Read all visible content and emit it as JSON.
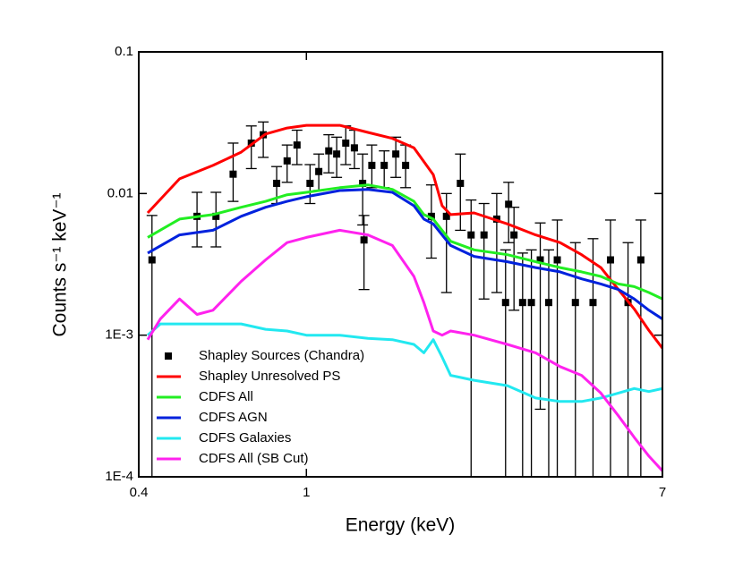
{
  "chart_data": {
    "type": "line",
    "xlabel": "Energy (keV)",
    "ylabel": "Counts s⁻¹ keV⁻¹",
    "xscale": "log",
    "yscale": "log",
    "xlim": [
      0.4,
      7
    ],
    "ylim": [
      0.0001,
      0.1
    ],
    "xticks": [
      0.4,
      1,
      7
    ],
    "yticks": [
      {
        "value": 0.0001,
        "label": "1E-4"
      },
      {
        "value": 0.001,
        "label": "1E-3"
      },
      0.01,
      0.1
    ],
    "legend": "bottom-left",
    "series": [
      {
        "name": "Shapley Sources (Chandra)",
        "type": "scatter",
        "color": "#000000",
        "x": [
          0.43,
          0.55,
          0.61,
          0.67,
          0.74,
          0.79,
          0.85,
          0.9,
          0.95,
          1.02,
          1.07,
          1.13,
          1.18,
          1.24,
          1.3,
          1.36,
          1.37,
          1.43,
          1.53,
          1.63,
          1.72,
          1.98,
          2.15,
          2.32,
          2.46,
          2.64,
          2.83,
          2.97,
          3.02,
          3.11,
          3.26,
          3.42,
          3.59,
          3.76,
          3.94,
          4.35,
          4.79,
          5.27,
          5.8,
          6.22
        ],
        "values": [
          0.0034,
          0.0069,
          0.0069,
          0.0137,
          0.0227,
          0.026,
          0.0118,
          0.017,
          0.022,
          0.0118,
          0.0143,
          0.02,
          0.019,
          0.0227,
          0.021,
          0.0118,
          0.0047,
          0.0158,
          0.0158,
          0.019,
          0.0158,
          0.0069,
          0.0069,
          0.0118,
          0.0051,
          0.0051,
          0.0066,
          0.0017,
          0.0084,
          0.0051,
          0.0017,
          0.0017,
          0.0034,
          0.0017,
          0.0034,
          0.0017,
          0.0017,
          0.0034,
          0.0017,
          0.0034
        ],
        "lower": [
          0.0001,
          0.0042,
          0.0042,
          0.0088,
          0.015,
          0.018,
          0.0085,
          0.012,
          0.016,
          0.0085,
          0.0105,
          0.014,
          0.013,
          0.016,
          0.015,
          0.006,
          0.0021,
          0.011,
          0.011,
          0.013,
          0.011,
          0.0035,
          0.002,
          0.0055,
          0.0001,
          0.0018,
          0.002,
          0.0001,
          0.0045,
          0.0015,
          0.0001,
          0.0001,
          0.0003,
          0.0001,
          0.0001,
          0.0001,
          0.0001,
          0.0001,
          0.0001,
          0.0001
        ],
        "upper": [
          0.007,
          0.0102,
          0.0102,
          0.0227,
          0.03,
          0.032,
          0.0155,
          0.022,
          0.028,
          0.016,
          0.019,
          0.026,
          0.025,
          0.03,
          0.028,
          0.019,
          0.007,
          0.022,
          0.02,
          0.025,
          0.022,
          0.0115,
          0.01,
          0.019,
          0.009,
          0.0085,
          0.01,
          0.004,
          0.012,
          0.008,
          0.0038,
          0.004,
          0.0062,
          0.004,
          0.0065,
          0.0045,
          0.0048,
          0.0065,
          0.0045,
          0.0065
        ]
      },
      {
        "name": "Shapley Unresolved PS",
        "type": "line",
        "color": "#ff0000",
        "x": [
          0.42,
          0.5,
          0.6,
          0.7,
          0.8,
          0.9,
          1.0,
          1.2,
          1.4,
          1.6,
          1.8,
          2.0,
          2.1,
          2.2,
          2.5,
          3,
          3.5,
          4,
          4.5,
          5,
          5.5,
          6,
          6.5,
          7
        ],
        "values": [
          0.0073,
          0.0127,
          0.0158,
          0.0196,
          0.0263,
          0.029,
          0.0303,
          0.0303,
          0.027,
          0.0245,
          0.021,
          0.0136,
          0.0082,
          0.0071,
          0.0073,
          0.0061,
          0.0051,
          0.0045,
          0.0037,
          0.003,
          0.0021,
          0.00153,
          0.00108,
          0.00081
        ]
      },
      {
        "name": "CDFS All",
        "type": "line",
        "color": "#22ee22",
        "x": [
          0.42,
          0.5,
          0.6,
          0.7,
          0.8,
          0.9,
          1.0,
          1.2,
          1.4,
          1.6,
          1.8,
          1.9,
          2.0,
          2.2,
          2.5,
          3,
          3.5,
          4,
          4.5,
          5,
          5.5,
          6,
          6.5,
          7
        ],
        "values": [
          0.0049,
          0.0066,
          0.0071,
          0.008,
          0.0088,
          0.0098,
          0.0102,
          0.011,
          0.0115,
          0.0107,
          0.0088,
          0.0071,
          0.0066,
          0.0046,
          0.004,
          0.0037,
          0.0033,
          0.003,
          0.0028,
          0.0026,
          0.0023,
          0.0022,
          0.002,
          0.0018
        ]
      },
      {
        "name": "CDFS AGN",
        "type": "line",
        "color": "#0022dd",
        "x": [
          0.42,
          0.5,
          0.6,
          0.7,
          0.8,
          0.9,
          1.0,
          1.2,
          1.4,
          1.6,
          1.8,
          1.9,
          2.0,
          2.2,
          2.5,
          3,
          3.5,
          4,
          4.5,
          5,
          5.5,
          6,
          6.5,
          7
        ],
        "values": [
          0.0038,
          0.0051,
          0.0055,
          0.0069,
          0.008,
          0.0088,
          0.0095,
          0.0105,
          0.0107,
          0.0102,
          0.0082,
          0.0066,
          0.0061,
          0.0043,
          0.0036,
          0.0033,
          0.003,
          0.0028,
          0.0025,
          0.0023,
          0.0021,
          0.0018,
          0.0015,
          0.0013
        ]
      },
      {
        "name": "CDFS Galaxies",
        "type": "line",
        "color": "#22e8f0",
        "x": [
          0.42,
          0.45,
          0.5,
          0.6,
          0.7,
          0.8,
          0.9,
          1.0,
          1.2,
          1.4,
          1.6,
          1.8,
          1.9,
          2.0,
          2.1,
          2.2,
          2.5,
          3,
          3.5,
          4,
          4.5,
          5,
          5.5,
          6,
          6.5,
          7
        ],
        "values": [
          0.001,
          0.0012,
          0.0012,
          0.0012,
          0.0012,
          0.0011,
          0.00107,
          0.001,
          0.001,
          0.00095,
          0.00093,
          0.00086,
          0.00075,
          0.00093,
          0.0007,
          0.00052,
          0.00048,
          0.00044,
          0.00036,
          0.00034,
          0.00034,
          0.00036,
          0.00039,
          0.00042,
          0.0004,
          0.00042
        ]
      },
      {
        "name": "CDFS All (SB Cut)",
        "type": "line",
        "color": "#ff22ee",
        "x": [
          0.42,
          0.45,
          0.5,
          0.55,
          0.6,
          0.7,
          0.8,
          0.9,
          1.0,
          1.2,
          1.4,
          1.6,
          1.8,
          1.9,
          2.0,
          2.1,
          2.2,
          2.5,
          3,
          3.5,
          4,
          4.5,
          5,
          5.5,
          6,
          6.5,
          7
        ],
        "values": [
          0.00093,
          0.0013,
          0.0018,
          0.0014,
          0.0015,
          0.0024,
          0.0034,
          0.0045,
          0.0049,
          0.0055,
          0.0051,
          0.0043,
          0.0026,
          0.0017,
          0.00107,
          0.001,
          0.00107,
          0.001,
          0.00086,
          0.00075,
          0.0006,
          0.00052,
          0.00039,
          0.00027,
          0.00019,
          0.00014,
          0.00011
        ]
      }
    ]
  }
}
